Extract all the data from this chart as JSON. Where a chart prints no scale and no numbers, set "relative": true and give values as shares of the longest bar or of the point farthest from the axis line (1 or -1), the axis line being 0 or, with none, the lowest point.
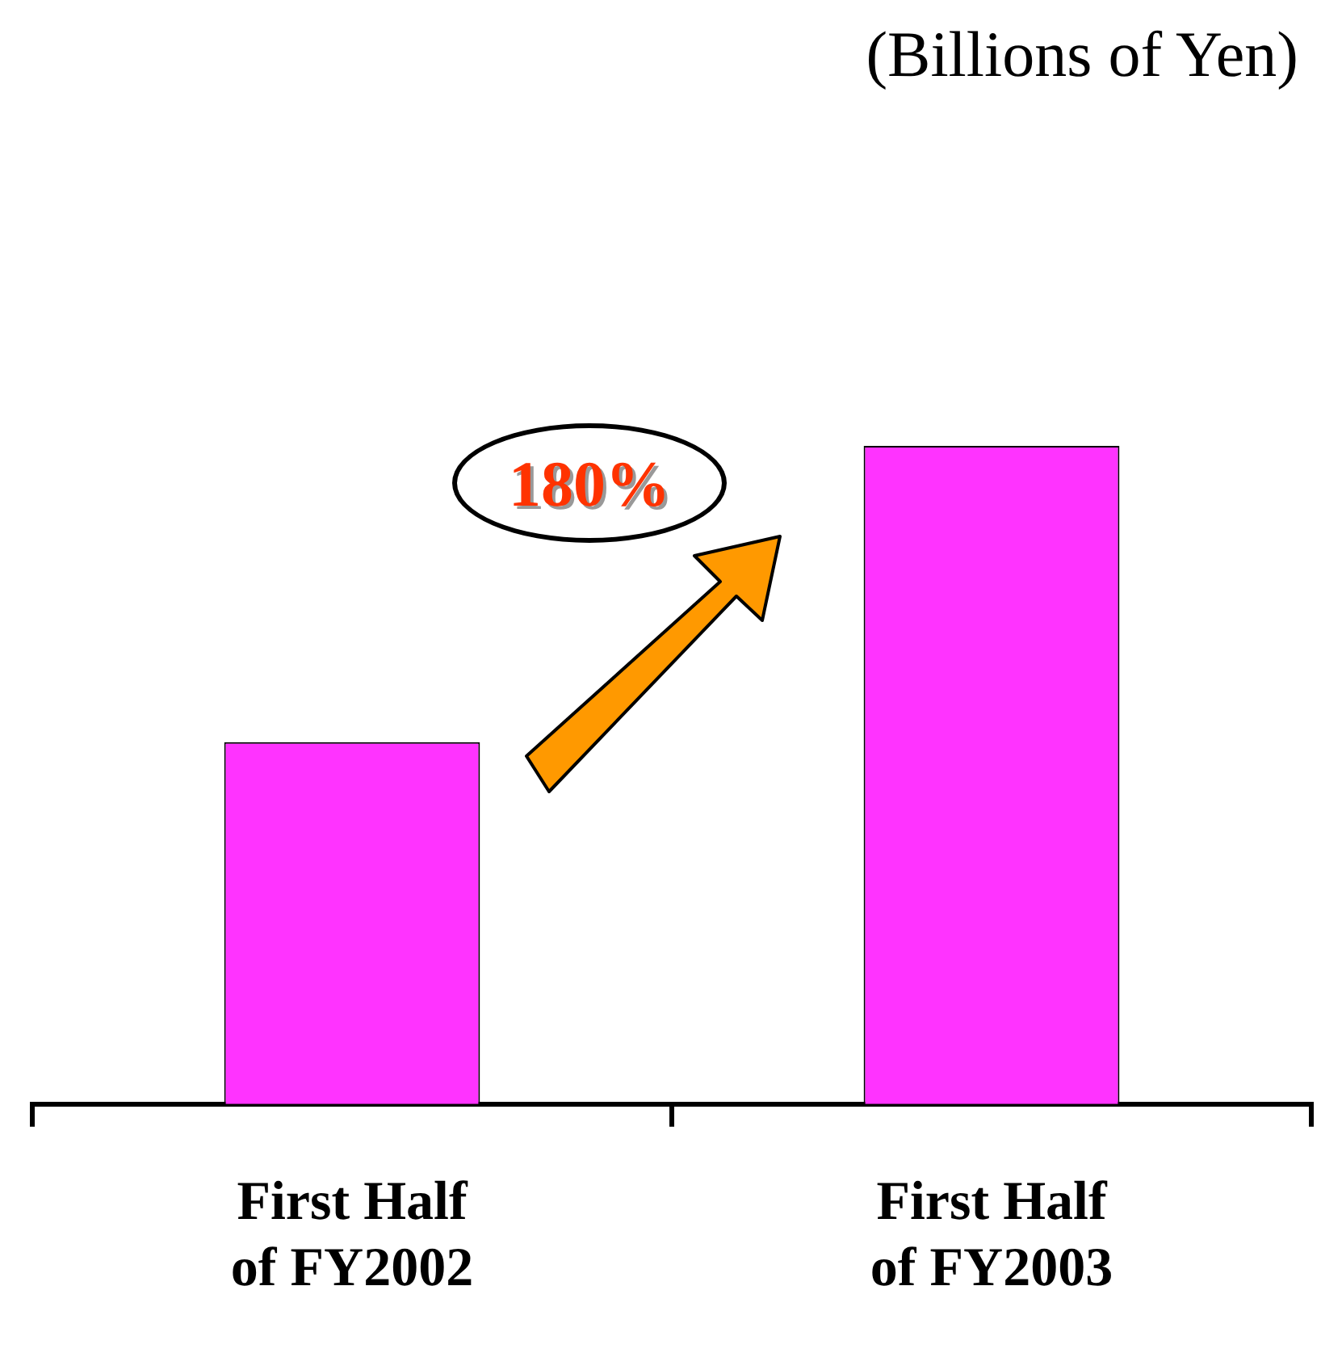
{
  "chart_data": {
    "type": "bar",
    "relative": true,
    "categories": [
      "First Half of FY2002",
      "First Half of FY2003"
    ],
    "values": [
      0.55,
      1
    ],
    "color": "#ff33ff",
    "annotations": [
      "(Billions of Yen)",
      "180%"
    ]
  }
}
